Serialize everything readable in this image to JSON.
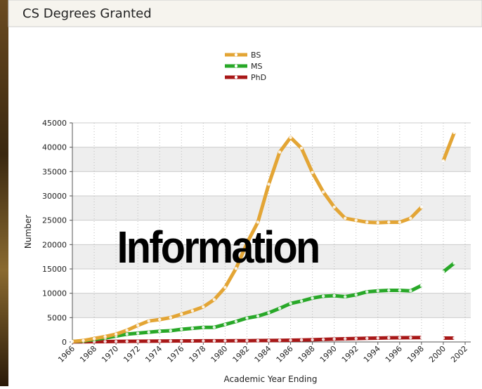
{
  "chart_data": {
    "type": "line",
    "title": "CS Degrees Granted",
    "annotation": "Information",
    "x_label": "Academic Year Ending",
    "y_label": "Number",
    "x": [
      1966,
      1967,
      1968,
      1969,
      1970,
      1971,
      1972,
      1973,
      1974,
      1975,
      1976,
      1977,
      1978,
      1979,
      1980,
      1981,
      1982,
      1983,
      1984,
      1985,
      1986,
      1987,
      1988,
      1989,
      1990,
      1991,
      1992,
      1993,
      1994,
      1995,
      1996,
      1997,
      1998,
      1999,
      2000,
      2001
    ],
    "series": [
      {
        "name": "BS",
        "color": "#e3a535",
        "values": [
          100,
          300,
          700,
          1100,
          1600,
          2400,
          3400,
          4300,
          4600,
          5000,
          5700,
          6400,
          7200,
          8700,
          11200,
          15100,
          20300,
          24600,
          32400,
          39000,
          42000,
          39800,
          34800,
          30800,
          27700,
          25400,
          25000,
          24600,
          24500,
          24600,
          24600,
          25400,
          27700,
          null,
          37200,
          43000
        ]
      },
      {
        "name": "MS",
        "color": "#28a828",
        "values": [
          100,
          200,
          500,
          800,
          1200,
          1600,
          1800,
          2000,
          2200,
          2300,
          2600,
          2800,
          3000,
          3000,
          3600,
          4200,
          4900,
          5300,
          6000,
          6900,
          7900,
          8400,
          9000,
          9400,
          9500,
          9300,
          9700,
          10300,
          10500,
          10600,
          10600,
          10500,
          11600,
          null,
          14400,
          16200
        ]
      },
      {
        "name": "PhD",
        "color": "#a81818",
        "values": [
          20,
          40,
          60,
          80,
          100,
          120,
          140,
          160,
          180,
          200,
          210,
          220,
          230,
          230,
          240,
          250,
          260,
          280,
          300,
          330,
          360,
          400,
          450,
          520,
          600,
          650,
          700,
          750,
          800,
          850,
          870,
          880,
          900,
          null,
          800,
          800
        ]
      }
    ],
    "xlim": [
      1966,
      2002
    ],
    "xticks": [
      1966,
      1968,
      1970,
      1972,
      1974,
      1976,
      1978,
      1980,
      1982,
      1984,
      1986,
      1988,
      1990,
      1992,
      1994,
      1996,
      1998,
      2000,
      2002
    ],
    "ylim": [
      0,
      45000
    ],
    "yticks": [
      0,
      5000,
      10000,
      15000,
      20000,
      25000,
      30000,
      35000,
      40000,
      45000
    ],
    "grid": true
  }
}
